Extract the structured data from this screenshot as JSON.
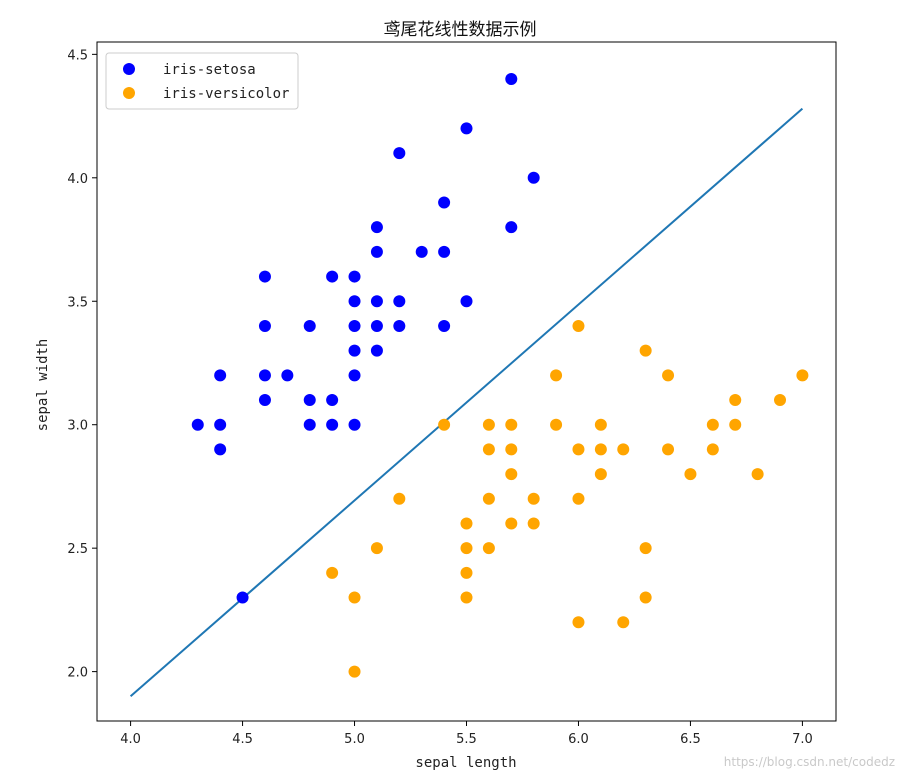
{
  "chart_data": {
    "type": "scatter",
    "title": "鸢尾花线性数据示例",
    "xlabel": "sepal length",
    "ylabel": "sepal width",
    "xlim": [
      3.85,
      7.15
    ],
    "ylim": [
      1.8,
      4.55
    ],
    "xticks": [
      4.0,
      4.5,
      5.0,
      5.5,
      6.0,
      6.5,
      7.0
    ],
    "xtick_labels": [
      "4.0",
      "4.5",
      "5.0",
      "5.5",
      "6.0",
      "6.5",
      "7.0"
    ],
    "yticks": [
      2.0,
      2.5,
      3.0,
      3.5,
      4.0,
      4.5
    ],
    "ytick_labels": [
      "2.0",
      "2.5",
      "3.0",
      "3.5",
      "4.0",
      "4.5"
    ],
    "grid": false,
    "legend_position": "top-left",
    "series": [
      {
        "name": "iris-setosa",
        "color": "#0000ff",
        "points": [
          [
            5.7,
            4.4
          ],
          [
            5.5,
            4.2
          ],
          [
            5.2,
            4.1
          ],
          [
            5.8,
            4.0
          ],
          [
            5.4,
            3.9
          ],
          [
            5.1,
            3.8
          ],
          [
            5.7,
            3.8
          ],
          [
            5.1,
            3.7
          ],
          [
            5.3,
            3.7
          ],
          [
            5.4,
            3.7
          ],
          [
            4.6,
            3.6
          ],
          [
            4.9,
            3.6
          ],
          [
            5.0,
            3.6
          ],
          [
            5.0,
            3.5
          ],
          [
            5.1,
            3.5
          ],
          [
            5.2,
            3.5
          ],
          [
            5.5,
            3.5
          ],
          [
            4.6,
            3.4
          ],
          [
            4.8,
            3.4
          ],
          [
            5.0,
            3.4
          ],
          [
            5.1,
            3.4
          ],
          [
            5.2,
            3.4
          ],
          [
            5.4,
            3.4
          ],
          [
            5.0,
            3.3
          ],
          [
            5.1,
            3.3
          ],
          [
            4.4,
            3.2
          ],
          [
            4.6,
            3.2
          ],
          [
            4.7,
            3.2
          ],
          [
            5.0,
            3.2
          ],
          [
            4.6,
            3.1
          ],
          [
            4.8,
            3.1
          ],
          [
            4.9,
            3.1
          ],
          [
            4.3,
            3.0
          ],
          [
            4.4,
            3.0
          ],
          [
            4.8,
            3.0
          ],
          [
            4.9,
            3.0
          ],
          [
            5.0,
            3.0
          ],
          [
            4.4,
            2.9
          ],
          [
            4.5,
            2.3
          ]
        ]
      },
      {
        "name": "iris-versicolor",
        "color": "#ffa500",
        "points": [
          [
            6.0,
            3.4
          ],
          [
            6.3,
            3.3
          ],
          [
            5.9,
            3.2
          ],
          [
            6.4,
            3.2
          ],
          [
            7.0,
            3.2
          ],
          [
            6.7,
            3.1
          ],
          [
            6.9,
            3.1
          ],
          [
            5.4,
            3.0
          ],
          [
            5.6,
            3.0
          ],
          [
            5.7,
            3.0
          ],
          [
            5.9,
            3.0
          ],
          [
            6.1,
            3.0
          ],
          [
            6.6,
            3.0
          ],
          [
            6.7,
            3.0
          ],
          [
            5.6,
            2.9
          ],
          [
            5.7,
            2.9
          ],
          [
            6.0,
            2.9
          ],
          [
            6.1,
            2.9
          ],
          [
            6.2,
            2.9
          ],
          [
            6.4,
            2.9
          ],
          [
            6.6,
            2.9
          ],
          [
            5.7,
            2.8
          ],
          [
            6.1,
            2.8
          ],
          [
            6.5,
            2.8
          ],
          [
            6.8,
            2.8
          ],
          [
            5.2,
            2.7
          ],
          [
            5.6,
            2.7
          ],
          [
            5.8,
            2.7
          ],
          [
            6.0,
            2.7
          ],
          [
            5.5,
            2.6
          ],
          [
            5.7,
            2.6
          ],
          [
            5.8,
            2.6
          ],
          [
            5.1,
            2.5
          ],
          [
            5.5,
            2.5
          ],
          [
            5.6,
            2.5
          ],
          [
            6.3,
            2.5
          ],
          [
            4.9,
            2.4
          ],
          [
            5.5,
            2.4
          ],
          [
            5.0,
            2.3
          ],
          [
            5.5,
            2.3
          ],
          [
            6.3,
            2.3
          ],
          [
            6.0,
            2.2
          ],
          [
            6.2,
            2.2
          ],
          [
            5.0,
            2.0
          ]
        ]
      }
    ],
    "line": {
      "color": "#1f77b4",
      "points": [
        [
          4.0,
          1.9
        ],
        [
          7.0,
          4.28
        ]
      ]
    }
  },
  "watermark": "https://blog.csdn.net/codedz"
}
